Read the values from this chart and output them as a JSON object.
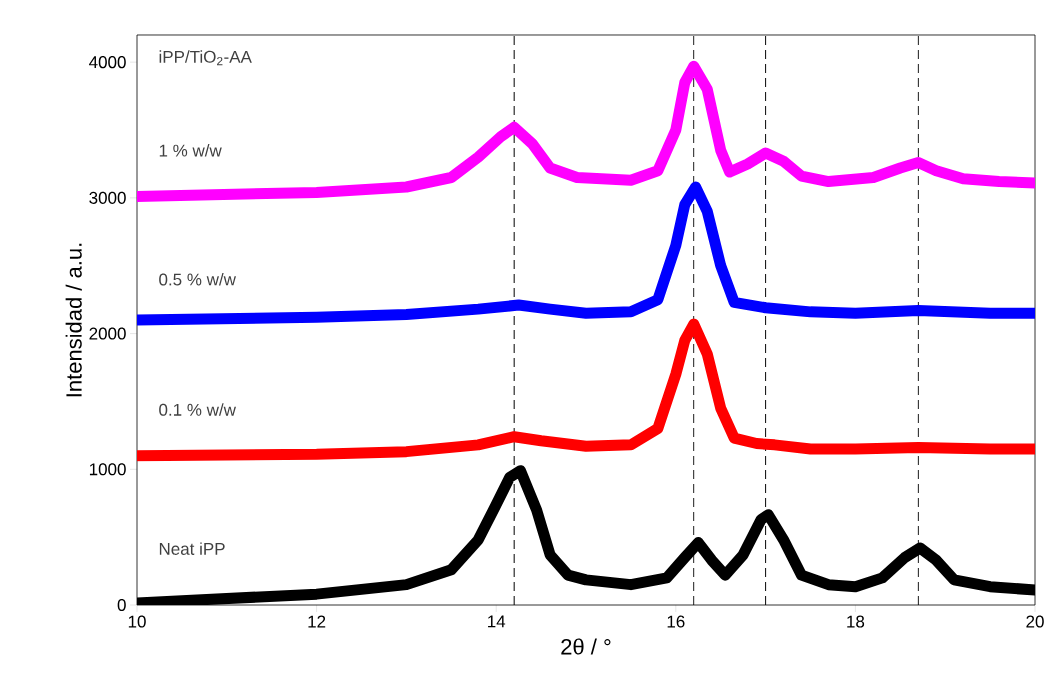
{
  "chart_data": {
    "type": "line",
    "xlabel": "2θ / °",
    "ylabel": "Intensidad / a.u.",
    "annotations": [
      "iPP/TiO$_{2}$-AA"
    ],
    "xlim": [
      10,
      20
    ],
    "ylim": [
      0,
      4200
    ],
    "xticks": [
      10,
      12,
      14,
      16,
      18,
      20
    ],
    "yticks": [
      0,
      1000,
      2000,
      3000,
      4000
    ],
    "grid": false,
    "marker": "none",
    "line_style": "solid",
    "ref_lines": [
      {
        "axis": "x",
        "value": 14.2,
        "color": "#000000",
        "line_style": "dashed"
      },
      {
        "axis": "x",
        "value": 16.2,
        "color": "#000000",
        "line_style": "dashed"
      },
      {
        "axis": "x",
        "value": 17.0,
        "color": "#000000",
        "line_style": "dashed"
      },
      {
        "axis": "x",
        "value": 18.7,
        "color": "#000000",
        "line_style": "dashed"
      }
    ],
    "series": [
      {
        "name": "Neat iPP",
        "color": "#000000",
        "x": [
          10,
          12,
          13,
          13.5,
          13.8,
          14.0,
          14.15,
          14.27,
          14.45,
          14.6,
          14.8,
          15,
          15.5,
          15.9,
          16.1,
          16.25,
          16.4,
          16.55,
          16.75,
          16.95,
          17.03,
          17.2,
          17.4,
          17.7,
          18.0,
          18.3,
          18.55,
          18.72,
          18.9,
          19.1,
          19.5,
          20
        ],
        "values": [
          15,
          80,
          150,
          260,
          480,
          740,
          940,
          990,
          700,
          370,
          220,
          185,
          150,
          200,
          350,
          460,
          330,
          220,
          370,
          630,
          665,
          480,
          220,
          150,
          135,
          200,
          350,
          420,
          330,
          185,
          135,
          110
        ]
      },
      {
        "name": "0.1 % w/w",
        "color": "#ff0000",
        "x": [
          10,
          12,
          13,
          13.8,
          14.2,
          14.5,
          15,
          15.5,
          15.8,
          16.0,
          16.1,
          16.2,
          16.35,
          16.5,
          16.65,
          16.9,
          17.1,
          17.5,
          18,
          18.7,
          19.5,
          20
        ],
        "values": [
          1100,
          1110,
          1130,
          1180,
          1240,
          1210,
          1170,
          1180,
          1300,
          1700,
          1950,
          2070,
          1850,
          1450,
          1230,
          1190,
          1180,
          1150,
          1150,
          1160,
          1150,
          1150
        ]
      },
      {
        "name": "0.5 % w/w",
        "color": "#0000ff",
        "x": [
          10,
          12,
          13,
          13.8,
          14.25,
          14.6,
          15,
          15.5,
          15.8,
          16.0,
          16.1,
          16.22,
          16.35,
          16.5,
          16.65,
          17,
          17.5,
          18,
          18.7,
          19.5,
          20
        ],
        "values": [
          2100,
          2120,
          2140,
          2180,
          2210,
          2180,
          2150,
          2160,
          2250,
          2650,
          2950,
          3080,
          2900,
          2500,
          2230,
          2190,
          2160,
          2150,
          2170,
          2150,
          2150
        ]
      },
      {
        "name": "1 % w/w",
        "color": "#ff00ff",
        "x": [
          10,
          12,
          13,
          13.5,
          13.8,
          14.05,
          14.2,
          14.4,
          14.6,
          14.9,
          15.5,
          15.8,
          16.0,
          16.1,
          16.2,
          16.35,
          16.5,
          16.6,
          16.8,
          17.0,
          17.2,
          17.4,
          17.7,
          18.2,
          18.5,
          18.7,
          18.9,
          19.2,
          19.6,
          20
        ],
        "values": [
          3010,
          3040,
          3080,
          3150,
          3300,
          3450,
          3520,
          3400,
          3220,
          3150,
          3130,
          3200,
          3500,
          3850,
          3970,
          3800,
          3350,
          3190,
          3250,
          3330,
          3270,
          3160,
          3120,
          3150,
          3220,
          3260,
          3200,
          3140,
          3120,
          3110
        ]
      }
    ]
  }
}
